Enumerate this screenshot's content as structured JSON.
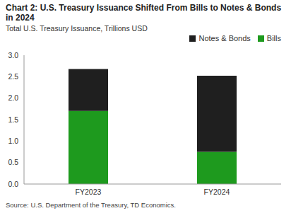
{
  "chart_data": {
    "type": "bar",
    "title": "Chart 2: U.S. Treasury Issuance Shifted From Bills to Notes & Bonds in 2024",
    "subtitle": "Total U.S. Treasury Issuance, Trillions USD",
    "source": "Source: U.S. Department of the Treasury, TD Economics.",
    "categories": [
      "FY2023",
      "FY2024"
    ],
    "series": [
      {
        "name": "Bills",
        "color": "#1e9a1e",
        "values": [
          1.7,
          0.75
        ]
      },
      {
        "name": "Notes & Bonds",
        "color": "#1f1f1f",
        "values": [
          0.98,
          1.77
        ]
      }
    ],
    "stacked": true,
    "legend": "upper right",
    "grid": false,
    "ylim": [
      0,
      3
    ],
    "yticks": [
      {
        "value": 0,
        "label": "0.0"
      },
      {
        "value": 0.5,
        "label": "0.5"
      },
      {
        "value": 1,
        "label": "1.0"
      },
      {
        "value": 1.5,
        "label": "1.5"
      },
      {
        "value": 2,
        "label": "2.0"
      },
      {
        "value": 2.5,
        "label": "2.5"
      },
      {
        "value": 3,
        "label": "3.0"
      }
    ]
  }
}
